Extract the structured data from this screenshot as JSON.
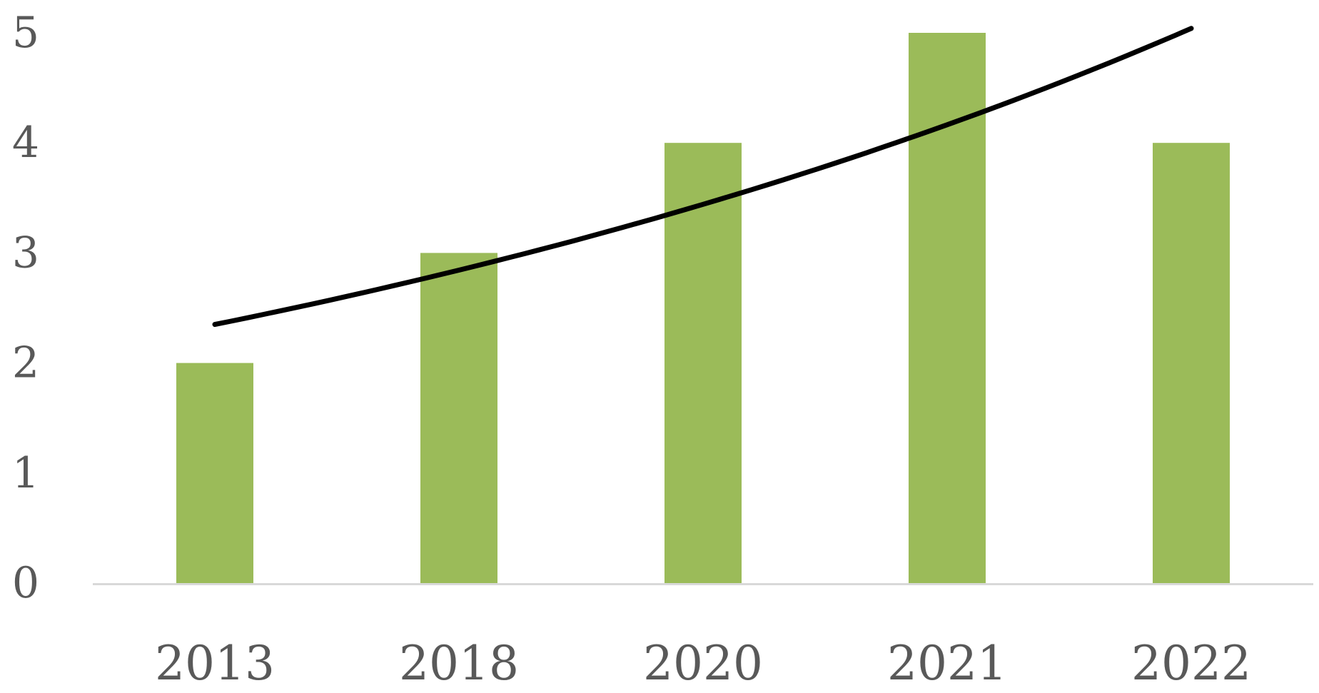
{
  "chart_data": {
    "type": "bar",
    "categories": [
      "2013",
      "2018",
      "2020",
      "2021",
      "2022"
    ],
    "series": [
      {
        "values": [
          2,
          3,
          4,
          5,
          4
        ],
        "color": "#9bbb59"
      }
    ],
    "trendline": {
      "type": "exponential",
      "color": "#000000",
      "values": [
        2.35,
        2.86,
        3.44,
        4.18,
        5.04
      ]
    },
    "title": "",
    "xlabel": "",
    "ylabel": "",
    "ylim": [
      0,
      5
    ],
    "yticks": [
      0,
      1,
      2,
      3,
      4,
      5
    ],
    "grid": false,
    "legend": "none",
    "axis_color": "#d9d9d9"
  }
}
